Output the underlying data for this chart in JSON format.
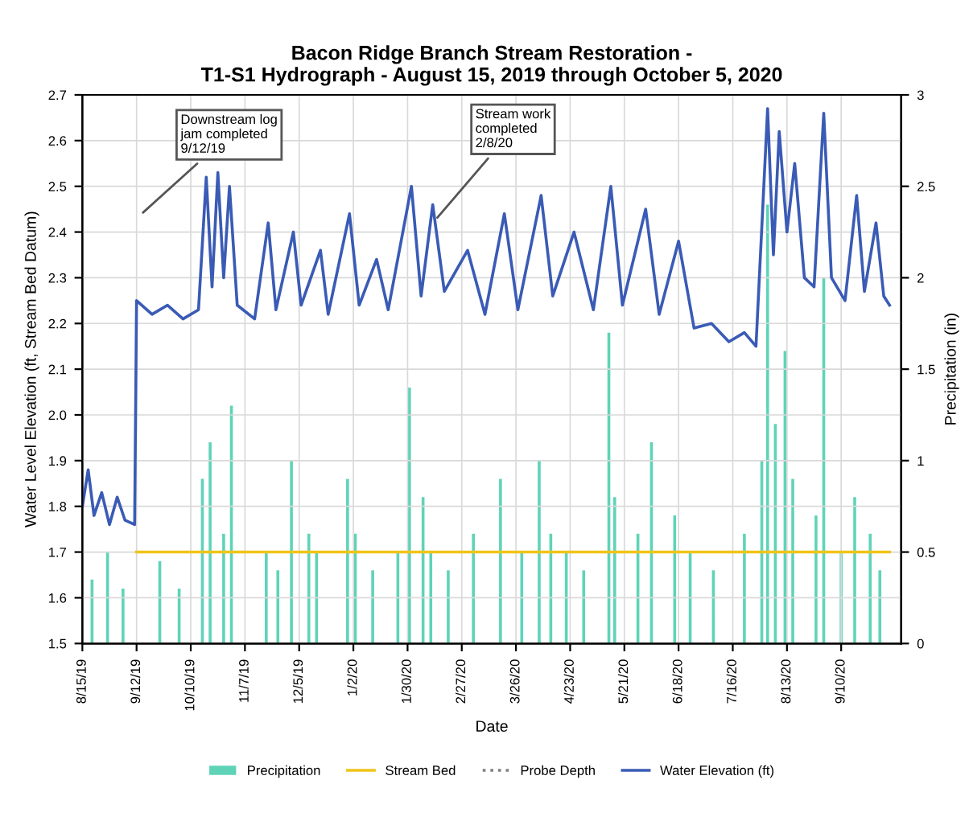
{
  "chart_data": {
    "type": "line",
    "title": "Bacon Ridge Branch Stream Restoration -\nT1-S1 Hydrograph - August 15, 2019 through October 5, 2020",
    "xlabel": "Date",
    "ylabel": "Water Level Elevation (ft, Stream Bed Datum)",
    "y2label": "Precipitation (in)",
    "xlim": [
      "2019-08-15",
      "2020-10-11"
    ],
    "xticks": [
      {
        "value": "2019-08-15",
        "label": "8/15/19"
      },
      {
        "value": "2019-09-12",
        "label": "9/12/19"
      },
      {
        "value": "2019-10-10",
        "label": "10/10/19"
      },
      {
        "value": "2019-11-07",
        "label": "11/7/19"
      },
      {
        "value": "2019-12-05",
        "label": "12/5/19"
      },
      {
        "value": "2020-01-02",
        "label": "1/2/20"
      },
      {
        "value": "2020-01-30",
        "label": "1/30/20"
      },
      {
        "value": "2020-02-27",
        "label": "2/27/20"
      },
      {
        "value": "2020-03-26",
        "label": "3/26/20"
      },
      {
        "value": "2020-04-23",
        "label": "4/23/20"
      },
      {
        "value": "2020-05-21",
        "label": "5/21/20"
      },
      {
        "value": "2020-06-18",
        "label": "6/18/20"
      },
      {
        "value": "2020-07-16",
        "label": "7/16/20"
      },
      {
        "value": "2020-08-13",
        "label": "8/13/20"
      },
      {
        "value": "2020-09-10",
        "label": "9/10/20"
      }
    ],
    "ylim": [
      1.5,
      2.7
    ],
    "yticks": [
      1.5,
      1.6,
      1.7,
      1.8,
      1.9,
      {
        "value": 2,
        "label": "2.0"
      },
      2.1,
      2.2,
      2.3,
      2.4,
      2.5,
      2.6,
      2.7
    ],
    "y2lim": [
      0,
      3
    ],
    "y2ticks": [
      0,
      0.5,
      1,
      1.5,
      2,
      2.5,
      3
    ],
    "grid": true,
    "legend": "bottom",
    "series": [
      {
        "name": "Precipitation",
        "type": "bar",
        "axis": "y2",
        "color": "#5fd3b8",
        "x": [
          "2019-08-20",
          "2019-08-28",
          "2019-09-05",
          "2019-09-24",
          "2019-10-04",
          "2019-10-16",
          "2019-10-20",
          "2019-10-27",
          "2019-10-31",
          "2019-11-18",
          "2019-11-24",
          "2019-12-01",
          "2019-12-10",
          "2019-12-14",
          "2019-12-30",
          "2020-01-03",
          "2020-01-12",
          "2020-01-25",
          "2020-01-31",
          "2020-02-07",
          "2020-02-11",
          "2020-02-20",
          "2020-03-04",
          "2020-03-18",
          "2020-03-29",
          "2020-04-07",
          "2020-04-13",
          "2020-04-21",
          "2020-04-30",
          "2020-05-13",
          "2020-05-16",
          "2020-05-28",
          "2020-06-04",
          "2020-06-16",
          "2020-06-24",
          "2020-07-06",
          "2020-07-22",
          "2020-07-31",
          "2020-08-03",
          "2020-08-07",
          "2020-08-12",
          "2020-08-16",
          "2020-08-28",
          "2020-09-01",
          "2020-09-10",
          "2020-09-17",
          "2020-09-25",
          "2020-09-30"
        ],
        "values": [
          0.35,
          0.5,
          0.3,
          0.45,
          0.3,
          0.9,
          1.1,
          0.6,
          1.3,
          0.5,
          0.4,
          1.0,
          0.6,
          0.5,
          0.9,
          0.6,
          0.4,
          0.5,
          1.4,
          0.8,
          0.5,
          0.4,
          0.6,
          0.9,
          0.5,
          1.0,
          0.6,
          0.5,
          0.4,
          1.7,
          0.8,
          0.6,
          1.1,
          0.7,
          0.5,
          0.4,
          0.6,
          1.0,
          2.4,
          1.2,
          1.6,
          0.9,
          0.7,
          2.0,
          0.5,
          0.8,
          0.6,
          0.4
        ]
      },
      {
        "name": "Stream Bed",
        "color": "#f0c419",
        "x": [
          "2019-09-12",
          "2020-10-05"
        ],
        "values": [
          1.7,
          1.7
        ]
      },
      {
        "name": "Probe Depth",
        "color": "#7f7f7f",
        "line_style": "dotted"
      },
      {
        "name": "Water Elevation (ft)",
        "color": "#3a5bb5",
        "x": [
          "2019-08-15",
          "2019-08-18",
          "2019-08-21",
          "2019-08-25",
          "2019-08-29",
          "2019-09-02",
          "2019-09-06",
          "2019-09-11",
          "2019-09-12",
          "2019-09-20",
          "2019-09-28",
          "2019-10-06",
          "2019-10-14",
          "2019-10-18",
          "2019-10-21",
          "2019-10-24",
          "2019-10-27",
          "2019-10-30",
          "2019-11-03",
          "2019-11-12",
          "2019-11-19",
          "2019-11-23",
          "2019-12-02",
          "2019-12-06",
          "2019-12-16",
          "2019-12-20",
          "2019-12-31",
          "2020-01-05",
          "2020-01-14",
          "2020-01-20",
          "2020-02-01",
          "2020-02-06",
          "2020-02-12",
          "2020-02-18",
          "2020-03-01",
          "2020-03-10",
          "2020-03-20",
          "2020-03-27",
          "2020-04-08",
          "2020-04-14",
          "2020-04-25",
          "2020-05-05",
          "2020-05-14",
          "2020-05-20",
          "2020-06-01",
          "2020-06-08",
          "2020-06-18",
          "2020-06-26",
          "2020-07-05",
          "2020-07-14",
          "2020-07-22",
          "2020-07-28",
          "2020-08-03",
          "2020-08-06",
          "2020-08-09",
          "2020-08-13",
          "2020-08-17",
          "2020-08-22",
          "2020-08-27",
          "2020-09-01",
          "2020-09-05",
          "2020-09-12",
          "2020-09-18",
          "2020-09-22",
          "2020-09-28",
          "2020-10-02",
          "2020-10-05"
        ],
        "values": [
          1.8,
          1.88,
          1.78,
          1.83,
          1.76,
          1.82,
          1.77,
          1.76,
          2.25,
          2.22,
          2.24,
          2.21,
          2.23,
          2.52,
          2.28,
          2.53,
          2.3,
          2.5,
          2.24,
          2.21,
          2.42,
          2.23,
          2.4,
          2.24,
          2.36,
          2.22,
          2.44,
          2.24,
          2.34,
          2.23,
          2.5,
          2.26,
          2.46,
          2.27,
          2.36,
          2.22,
          2.44,
          2.23,
          2.48,
          2.26,
          2.4,
          2.23,
          2.5,
          2.24,
          2.45,
          2.22,
          2.38,
          2.19,
          2.2,
          2.16,
          2.18,
          2.15,
          2.67,
          2.35,
          2.62,
          2.4,
          2.55,
          2.3,
          2.28,
          2.66,
          2.3,
          2.25,
          2.48,
          2.27,
          2.42,
          2.26,
          2.24
        ]
      }
    ],
    "annotations": [
      "Downstream log\njam completed\n9/12/19",
      "Stream work\ncompleted\n2/8/20"
    ]
  }
}
